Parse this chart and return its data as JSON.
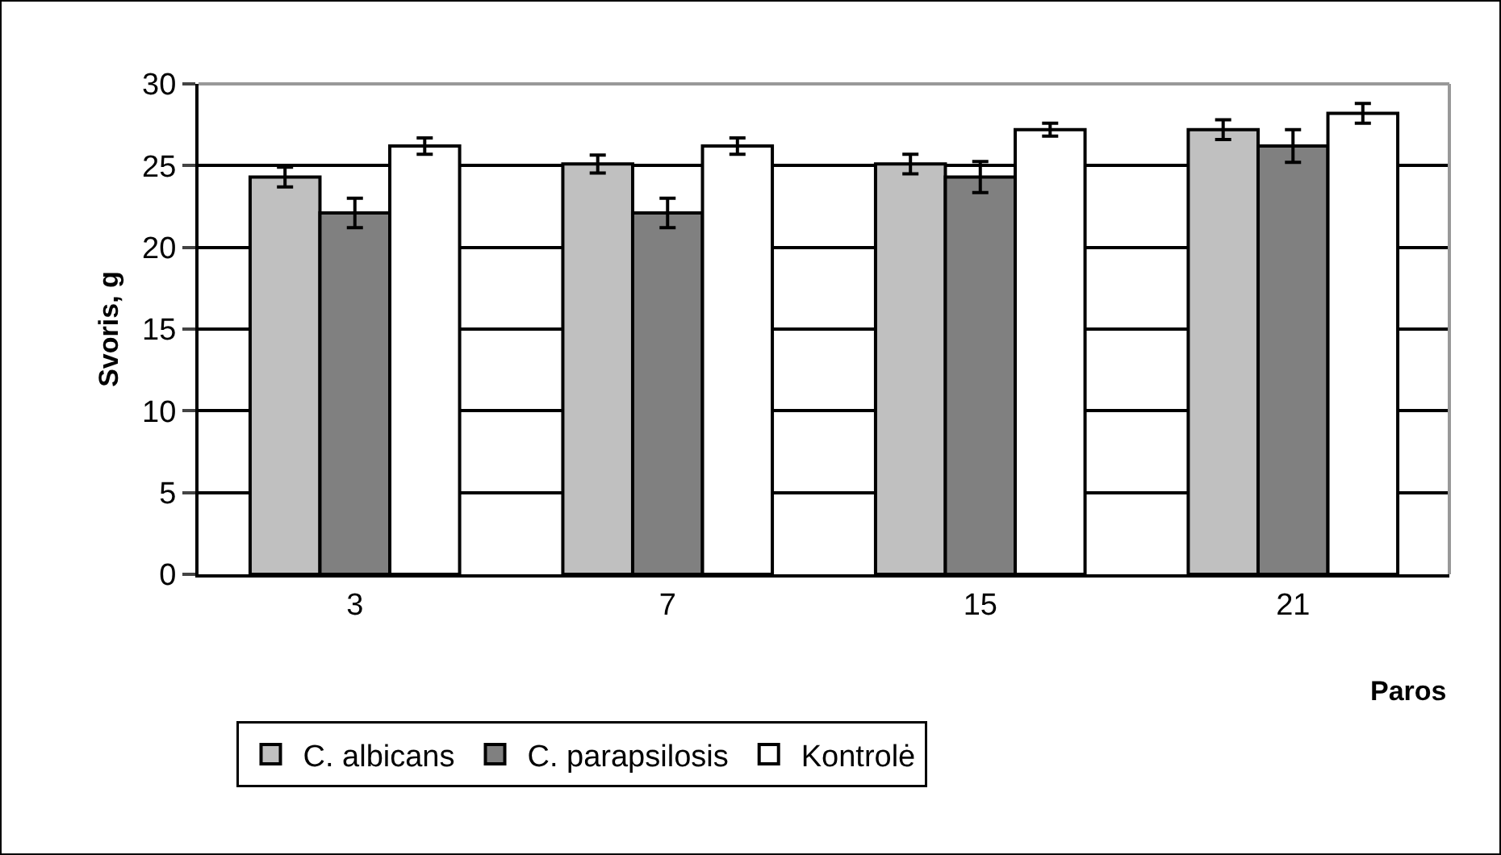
{
  "chart_data": {
    "type": "bar",
    "xlabel": "Paros",
    "ylabel": "Svoris, g",
    "categories": [
      "3",
      "7",
      "15",
      "21"
    ],
    "series": [
      {
        "name": "C. albicans",
        "color": "#c0c0c0",
        "values": [
          24.3,
          25.1,
          25.1,
          27.2
        ],
        "errors": [
          0.6,
          0.55,
          0.6,
          0.6
        ]
      },
      {
        "name": "C. parapsilosis",
        "color": "#808080",
        "values": [
          22.1,
          22.1,
          24.3,
          26.2
        ],
        "errors": [
          0.9,
          0.9,
          0.95,
          1.0
        ]
      },
      {
        "name": "Kontrolė",
        "color": "#ffffff",
        "values": [
          26.2,
          26.2,
          27.2,
          28.2
        ],
        "errors": [
          0.5,
          0.5,
          0.4,
          0.6
        ]
      }
    ],
    "ylim": [
      0,
      30
    ],
    "yticks": [
      0,
      5,
      10,
      15,
      20,
      25,
      30
    ],
    "grid": "y",
    "legend": "bottom left"
  }
}
